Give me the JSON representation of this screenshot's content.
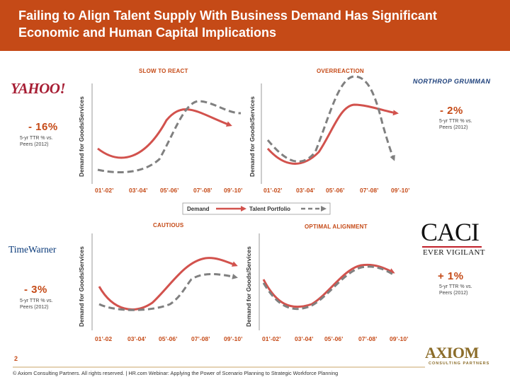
{
  "slide": {
    "title": "Failing to Align Talent Supply With Business Demand Has Significant Economic and Human Capital Implications",
    "page_number": "2",
    "footer": "© Axiom Consulting Partners. All rights reserved. | HR.com Webinar: Applying the Power of Scenario Planning to Strategic Workforce Planning"
  },
  "axis_label": "Demand for Goods/Services",
  "x_ticks": [
    "01’-02’",
    "03’-04’",
    "05’-06’",
    "07’-08’",
    "09’-10’"
  ],
  "x_ticks_right_top": [
    "01’-02’",
    "03’-04’",
    "05’-06’",
    "07’-08’",
    "09’-10’"
  ],
  "x_ticks_bottom_left": [
    "01’-02",
    "03’-04’",
    "05’-06’",
    "07’-08’",
    "09’-10’"
  ],
  "x_ticks_bottom_right": [
    "01’-02’",
    "03’-04’",
    "05’-06’",
    "07’-08’",
    "09’-10’"
  ],
  "legend": {
    "demand": "Demand",
    "talent": "Talent Portfolio"
  },
  "quadrants": {
    "slow": {
      "title": "SLOW TO REACT",
      "company": "YAHOO!",
      "stat": "- 16%",
      "note": "5-yr TTR % vs. Peers (2012)"
    },
    "over": {
      "title": "OVERREACTION",
      "company": "NORTHROP GRUMMAN",
      "stat": "- 2%",
      "note": "5-yr TTR % vs. Peers (2012)"
    },
    "caution": {
      "title": "CAUTIOUS",
      "company": "TimeWarner",
      "stat": "- 3%",
      "note": "5-yr TTR % vs. Peers (2012)"
    },
    "optimal": {
      "title": "OPTIMAL ALIGNMENT",
      "company": "CACI",
      "tagline": "EVER VIGILANT",
      "stat": "+ 1%",
      "note": "5-yr TTR % vs. Peers (2012)"
    }
  },
  "branding": {
    "axiom": "AXIOM",
    "axiom_sub": "CONSULTING PARTNERS"
  },
  "colors": {
    "accent": "#c54a17",
    "demand_line": "#d2524d",
    "talent_line": "#808080"
  }
}
